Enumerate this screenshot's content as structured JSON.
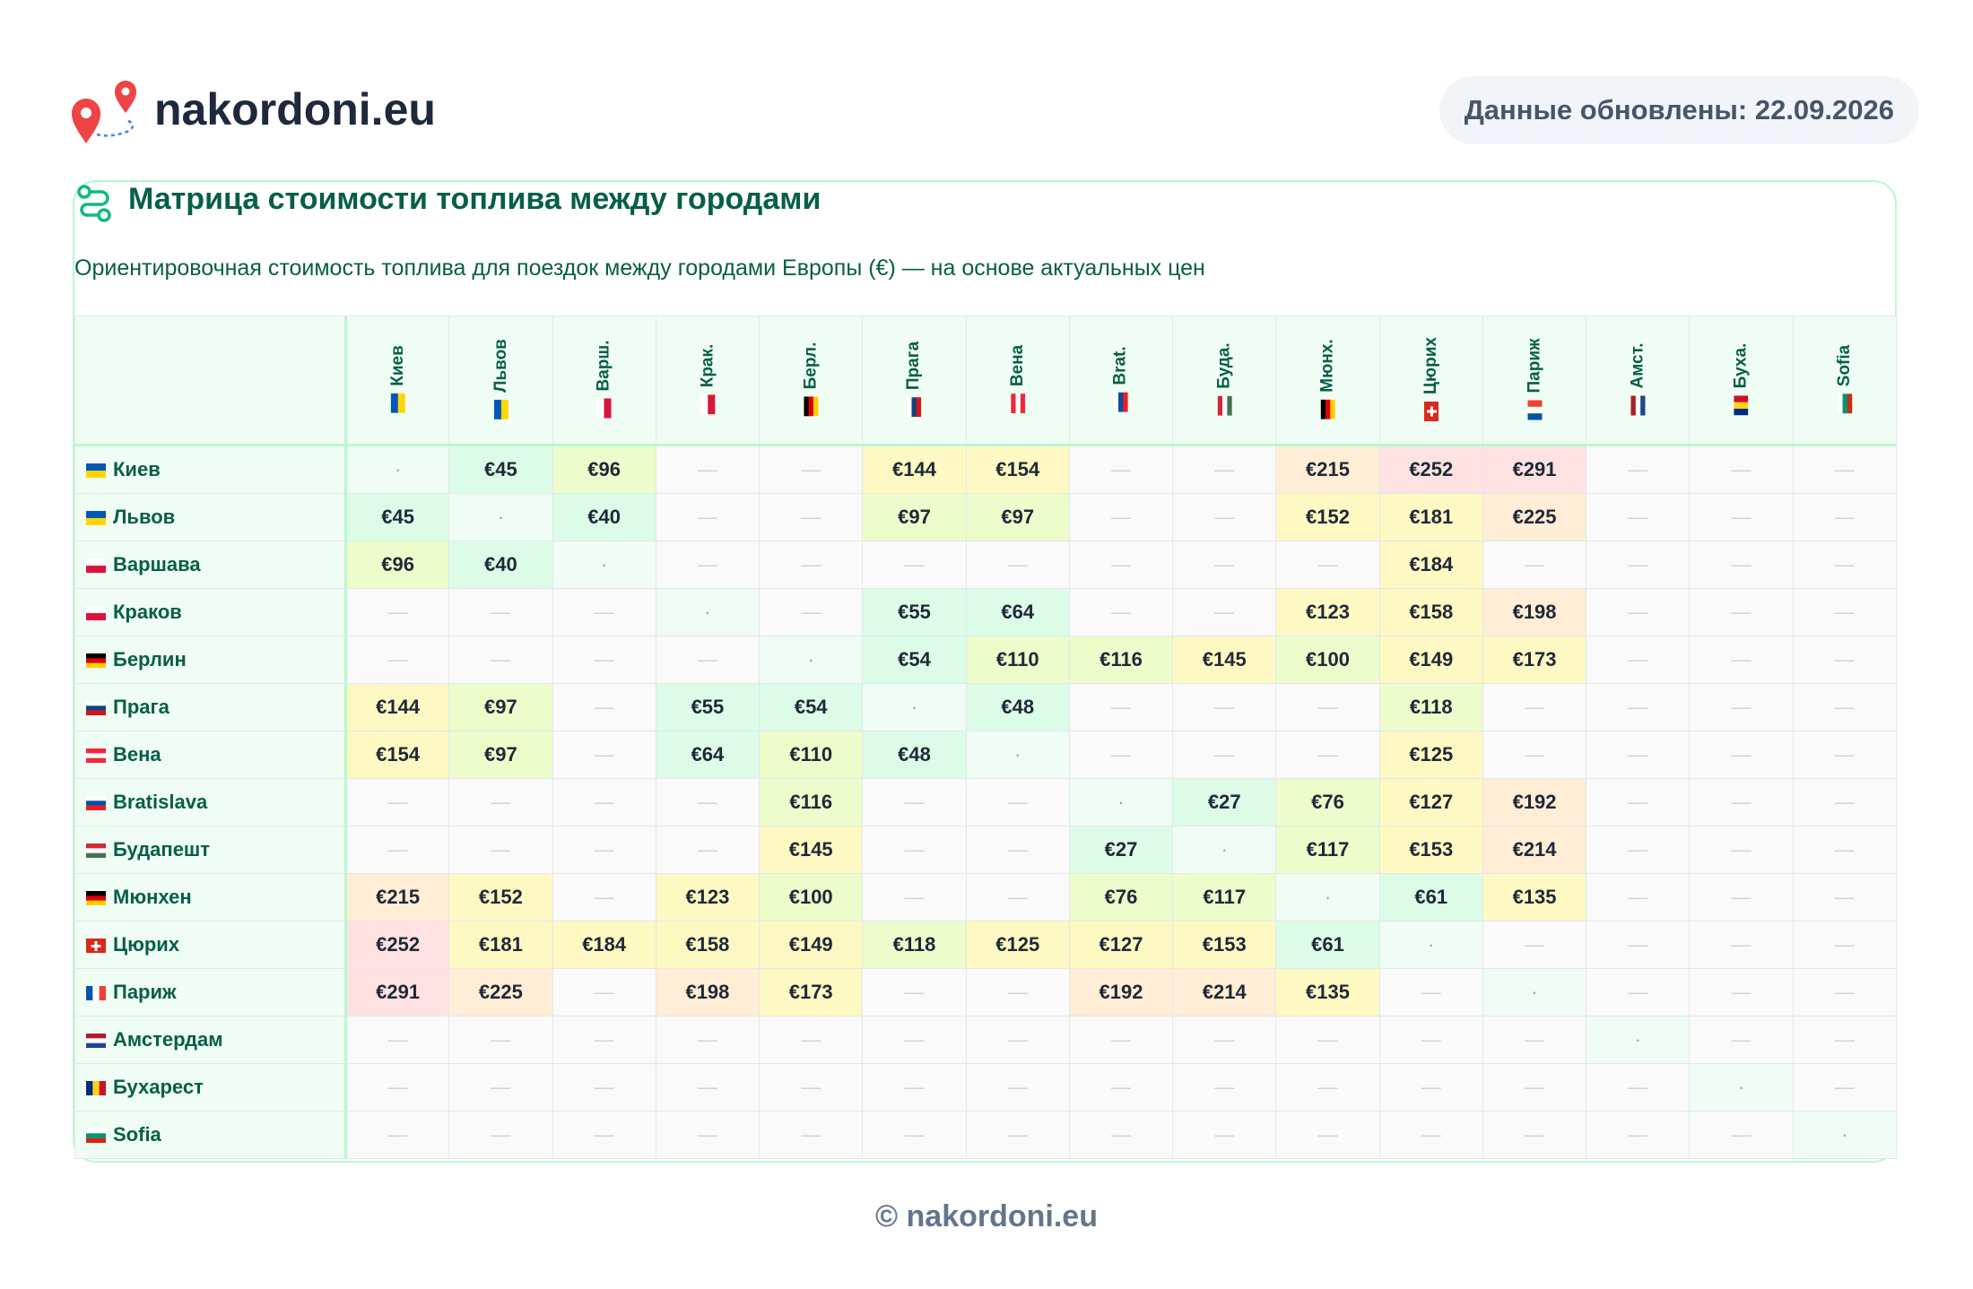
{
  "header": {
    "logo_text": "nakordoni.eu",
    "updated": "Данные обновлены: 22.09.2026"
  },
  "card": {
    "title": "Матрица стоимости топлива между городами",
    "subtitle": "Ориентировочная стоимость топлива для поездок между городами Европы (€) — на основе актуальных цен"
  },
  "table": {
    "columns": [
      "Киев",
      "Львов",
      "Варш.",
      "Крак.",
      "Берл.",
      "Прага",
      "Вена",
      "Brat.",
      "Буда.",
      "Мюнх.",
      "Цюрих",
      "Париж",
      "Амст.",
      "Буха.",
      "Sofia"
    ],
    "rows": [
      {
        "label": "Киев",
        "cells": [
          "·",
          "€45",
          "€96",
          "—",
          "—",
          "€144",
          "€154",
          "—",
          "—",
          "€215",
          "€252",
          "€291",
          "—",
          "—",
          "—"
        ]
      },
      {
        "label": "Львов",
        "cells": [
          "€45",
          "·",
          "€40",
          "—",
          "—",
          "€97",
          "€97",
          "—",
          "—",
          "€152",
          "€181",
          "€225",
          "—",
          "—",
          "—"
        ]
      },
      {
        "label": "Варшава",
        "cells": [
          "€96",
          "€40",
          "·",
          "—",
          "—",
          "—",
          "—",
          "—",
          "—",
          "—",
          "€184",
          "—",
          "—",
          "—",
          "—"
        ]
      },
      {
        "label": "Краков",
        "cells": [
          "—",
          "—",
          "—",
          "·",
          "—",
          "€55",
          "€64",
          "—",
          "—",
          "€123",
          "€158",
          "€198",
          "—",
          "—",
          "—"
        ]
      },
      {
        "label": "Берлин",
        "cells": [
          "—",
          "—",
          "—",
          "—",
          "·",
          "€54",
          "€110",
          "€116",
          "€145",
          "€100",
          "€149",
          "€173",
          "—",
          "—",
          "—"
        ]
      },
      {
        "label": "Прага",
        "cells": [
          "€144",
          "€97",
          "—",
          "€55",
          "€54",
          "·",
          "€48",
          "—",
          "—",
          "—",
          "€118",
          "—",
          "—",
          "—",
          "—"
        ]
      },
      {
        "label": "Вена",
        "cells": [
          "€154",
          "€97",
          "—",
          "€64",
          "€110",
          "€48",
          "·",
          "—",
          "—",
          "—",
          "€125",
          "—",
          "—",
          "—",
          "—"
        ]
      },
      {
        "label": "Bratislava",
        "cells": [
          "—",
          "—",
          "—",
          "—",
          "€116",
          "—",
          "—",
          "·",
          "€27",
          "€76",
          "€127",
          "€192",
          "—",
          "—",
          "—"
        ]
      },
      {
        "label": "Будапешт",
        "cells": [
          "—",
          "—",
          "—",
          "—",
          "€145",
          "—",
          "—",
          "€27",
          "·",
          "€117",
          "€153",
          "€214",
          "—",
          "—",
          "—"
        ]
      },
      {
        "label": "Мюнхен",
        "cells": [
          "€215",
          "€152",
          "—",
          "€123",
          "€100",
          "—",
          "—",
          "€76",
          "€117",
          "·",
          "€61",
          "€135",
          "—",
          "—",
          "—"
        ]
      },
      {
        "label": "Цюрих",
        "cells": [
          "€252",
          "€181",
          "€184",
          "€158",
          "€149",
          "€118",
          "€125",
          "€127",
          "€153",
          "€61",
          "·",
          "—",
          "—",
          "—",
          "—"
        ]
      },
      {
        "label": "Париж",
        "cells": [
          "€291",
          "€225",
          "—",
          "€198",
          "€173",
          "—",
          "—",
          "€192",
          "€214",
          "€135",
          "—",
          "·",
          "—",
          "—",
          "—"
        ]
      },
      {
        "label": "Амстердам",
        "cells": [
          "—",
          "—",
          "—",
          "—",
          "—",
          "—",
          "—",
          "—",
          "—",
          "—",
          "—",
          "—",
          "·",
          "—",
          "—"
        ]
      },
      {
        "label": "Бухарест",
        "cells": [
          "—",
          "—",
          "—",
          "—",
          "—",
          "—",
          "—",
          "—",
          "—",
          "—",
          "—",
          "—",
          "—",
          "·",
          "—"
        ]
      },
      {
        "label": "Sofia",
        "cells": [
          "—",
          "—",
          "—",
          "—",
          "—",
          "—",
          "—",
          "—",
          "—",
          "—",
          "—",
          "—",
          "—",
          "—",
          "·"
        ]
      }
    ]
  },
  "footer": {
    "text": "© nakordoni.eu"
  }
}
